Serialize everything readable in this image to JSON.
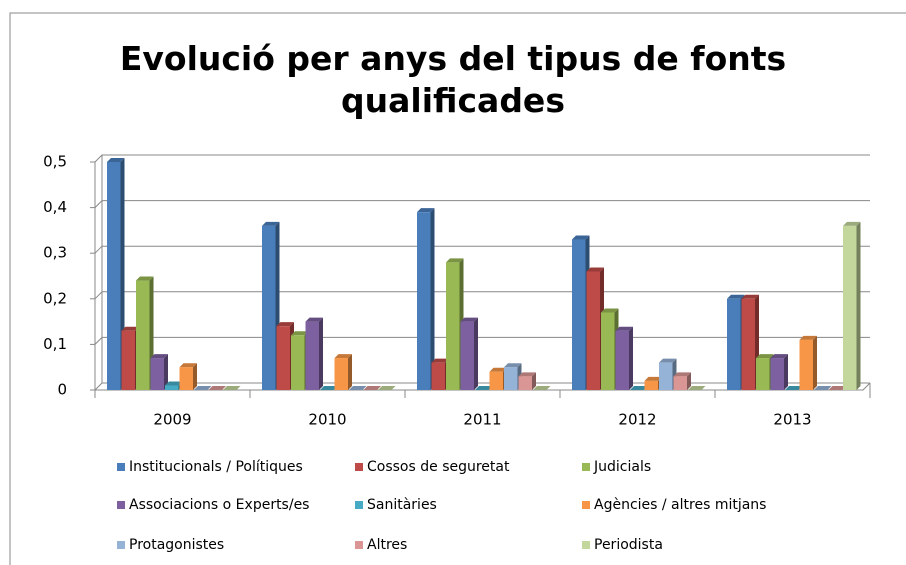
{
  "chart_data": {
    "type": "bar",
    "title": "Evolució per anys del tipus de fonts qualificades",
    "categories": [
      "2009",
      "2010",
      "2011",
      "2012",
      "2013"
    ],
    "series": [
      {
        "name": "Institucionals / Polítiques",
        "color": "#4a7ebb",
        "values": [
          0.5,
          0.36,
          0.39,
          0.33,
          0.2
        ]
      },
      {
        "name": "Cossos de seguretat",
        "color": "#be4b48",
        "values": [
          0.13,
          0.14,
          0.06,
          0.26,
          0.2
        ]
      },
      {
        "name": "Judicials",
        "color": "#98b954",
        "values": [
          0.24,
          0.12,
          0.28,
          0.17,
          0.07
        ]
      },
      {
        "name": "Associacions o Experts/es",
        "color": "#7d60a0",
        "values": [
          0.07,
          0.15,
          0.15,
          0.13,
          0.07
        ]
      },
      {
        "name": "Sanitàries",
        "color": "#46aac5",
        "values": [
          0.01,
          0,
          0,
          0,
          0
        ]
      },
      {
        "name": "Agències / altres mitjans",
        "color": "#f79646",
        "values": [
          0.05,
          0.07,
          0.04,
          0.02,
          0.11
        ]
      },
      {
        "name": "Protagonistes",
        "color": "#95b3d7",
        "values": [
          0,
          0,
          0.05,
          0.06,
          0
        ]
      },
      {
        "name": "Altres",
        "color": "#d99694",
        "values": [
          0,
          0,
          0.03,
          0.03,
          0
        ]
      },
      {
        "name": "Periodista",
        "color": "#c3d69b",
        "values": [
          0,
          0,
          0,
          0,
          0.36
        ]
      }
    ],
    "ylim": [
      0,
      0.5
    ],
    "yticks": [
      {
        "value": 0,
        "label": "0"
      },
      {
        "value": 0.1,
        "label": "0,1"
      },
      {
        "value": 0.2,
        "label": "0,2"
      },
      {
        "value": 0.3,
        "label": "0,3"
      },
      {
        "value": 0.4,
        "label": "0,4"
      },
      {
        "value": 0.5,
        "label": "0,5"
      }
    ],
    "grid": true
  }
}
